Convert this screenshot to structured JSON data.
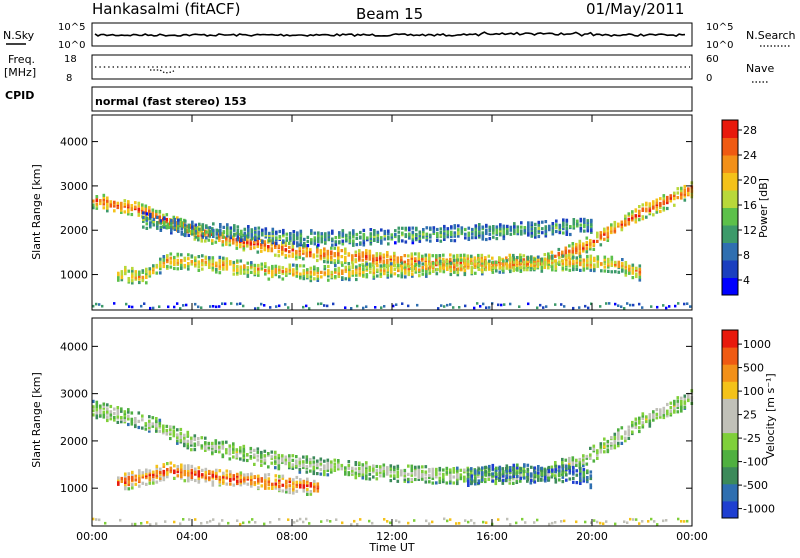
{
  "header": {
    "title": "Hankasalmi (fitACF)",
    "beam": "Beam 15",
    "date": "01/May/2011"
  },
  "top_panels": {
    "nsky_label": "N.Sky",
    "nsky_ticks": [
      "10^5",
      "10^0"
    ],
    "nsearch_label": "N.Search",
    "nsearch_ticks": [
      "10^5",
      "10^0"
    ],
    "freq_label_line1": "Freq.",
    "freq_label_line2": "[MHz]",
    "freq_ticks": [
      "18",
      "8"
    ],
    "nave_label": "Nave",
    "nave_ticks": [
      "60",
      "0"
    ],
    "cpid_label": "CPID",
    "cpid_text": "normal (fast stereo) 153"
  },
  "chart_data": [
    {
      "type": "heatmap",
      "name": "power",
      "ylabel": "Slant Range [km]",
      "yticks": [
        "1000",
        "2000",
        "3000",
        "4000"
      ],
      "ylim": [
        200,
        4600
      ],
      "xlim": [
        0,
        24
      ],
      "colorbar": {
        "label": "Power [dB]",
        "ticks": [
          "4",
          "8",
          "12",
          "16",
          "20",
          "24",
          "28"
        ],
        "colors": [
          "#0000ff",
          "#1a3fbf",
          "#2f6fb0",
          "#3c9a6a",
          "#5cc04a",
          "#b8d83a",
          "#f4c21a",
          "#f39018",
          "#ef5a12",
          "#e8190c"
        ]
      },
      "bands": [
        {
          "t": [
            0.0,
            2.0,
            4.0,
            6.0,
            8.0,
            10.0,
            12.0,
            14.0,
            16.0,
            18.0,
            20.0,
            22.0,
            24.0
          ],
          "range": [
            2650,
            2400,
            1950,
            1700,
            1500,
            1400,
            1300,
            1250,
            1250,
            1250,
            1700,
            2400,
            2900
          ],
          "level": 0.75
        },
        {
          "t": [
            1.0,
            2.0,
            3.0,
            5.0,
            7.0,
            9.0,
            11.0,
            13.0,
            15.0,
            17.0,
            19.0,
            21.0,
            22.0
          ],
          "range": [
            1000,
            900,
            1300,
            1200,
            1050,
            1000,
            1050,
            1100,
            1150,
            1200,
            1250,
            1200,
            1000
          ],
          "level": 0.6
        },
        {
          "t": [
            2.0,
            4.0,
            6.0,
            8.0,
            10.0,
            12.0,
            14.0,
            16.0,
            18.0,
            20.0
          ],
          "range": [
            2200,
            2000,
            1900,
            1800,
            1800,
            1850,
            1900,
            1950,
            2000,
            2100
          ],
          "level": 0.35
        }
      ]
    },
    {
      "type": "heatmap",
      "name": "velocity",
      "xlabel": "Time UT",
      "ylabel": "Slant Range [km]",
      "yticks": [
        "1000",
        "2000",
        "3000",
        "4000"
      ],
      "xticks": [
        "00:00",
        "04:00",
        "08:00",
        "12:00",
        "16:00",
        "20:00",
        "00:00"
      ],
      "ylim": [
        200,
        4600
      ],
      "xlim": [
        0,
        24
      ],
      "colorbar": {
        "label": "Velocity [m s⁻¹]",
        "ticks": [
          "1000",
          "500",
          "100",
          "25",
          "-25",
          "-100",
          "-500",
          "-1000"
        ],
        "colors": [
          "#1f3fd0",
          "#2f6fb0",
          "#3c8a5a",
          "#4fb040",
          "#7fcf3a",
          "#c0c0b8",
          "#c0c0b8",
          "#f4c21a",
          "#f39018",
          "#ef5a12",
          "#e8190c"
        ]
      },
      "bands": [
        {
          "t": [
            0.0,
            2.0,
            4.0,
            6.0,
            8.0,
            10.0,
            12.0,
            14.0,
            16.0,
            18.0,
            20.0,
            22.0,
            24.0
          ],
          "range": [
            2650,
            2400,
            1950,
            1700,
            1500,
            1400,
            1300,
            1250,
            1250,
            1250,
            1700,
            2400,
            2900
          ],
          "level": 0.45
        },
        {
          "t": [
            1.0,
            2.0,
            3.0,
            5.0,
            7.0,
            9.0
          ],
          "range": [
            1100,
            1200,
            1350,
            1200,
            1100,
            1000
          ],
          "level": 0.8
        },
        {
          "t": [
            15.0,
            16.0,
            17.0,
            18.0,
            19.0,
            20.0
          ],
          "range": [
            1200,
            1300,
            1350,
            1250,
            1300,
            1150
          ],
          "level": 0.2
        }
      ]
    }
  ]
}
